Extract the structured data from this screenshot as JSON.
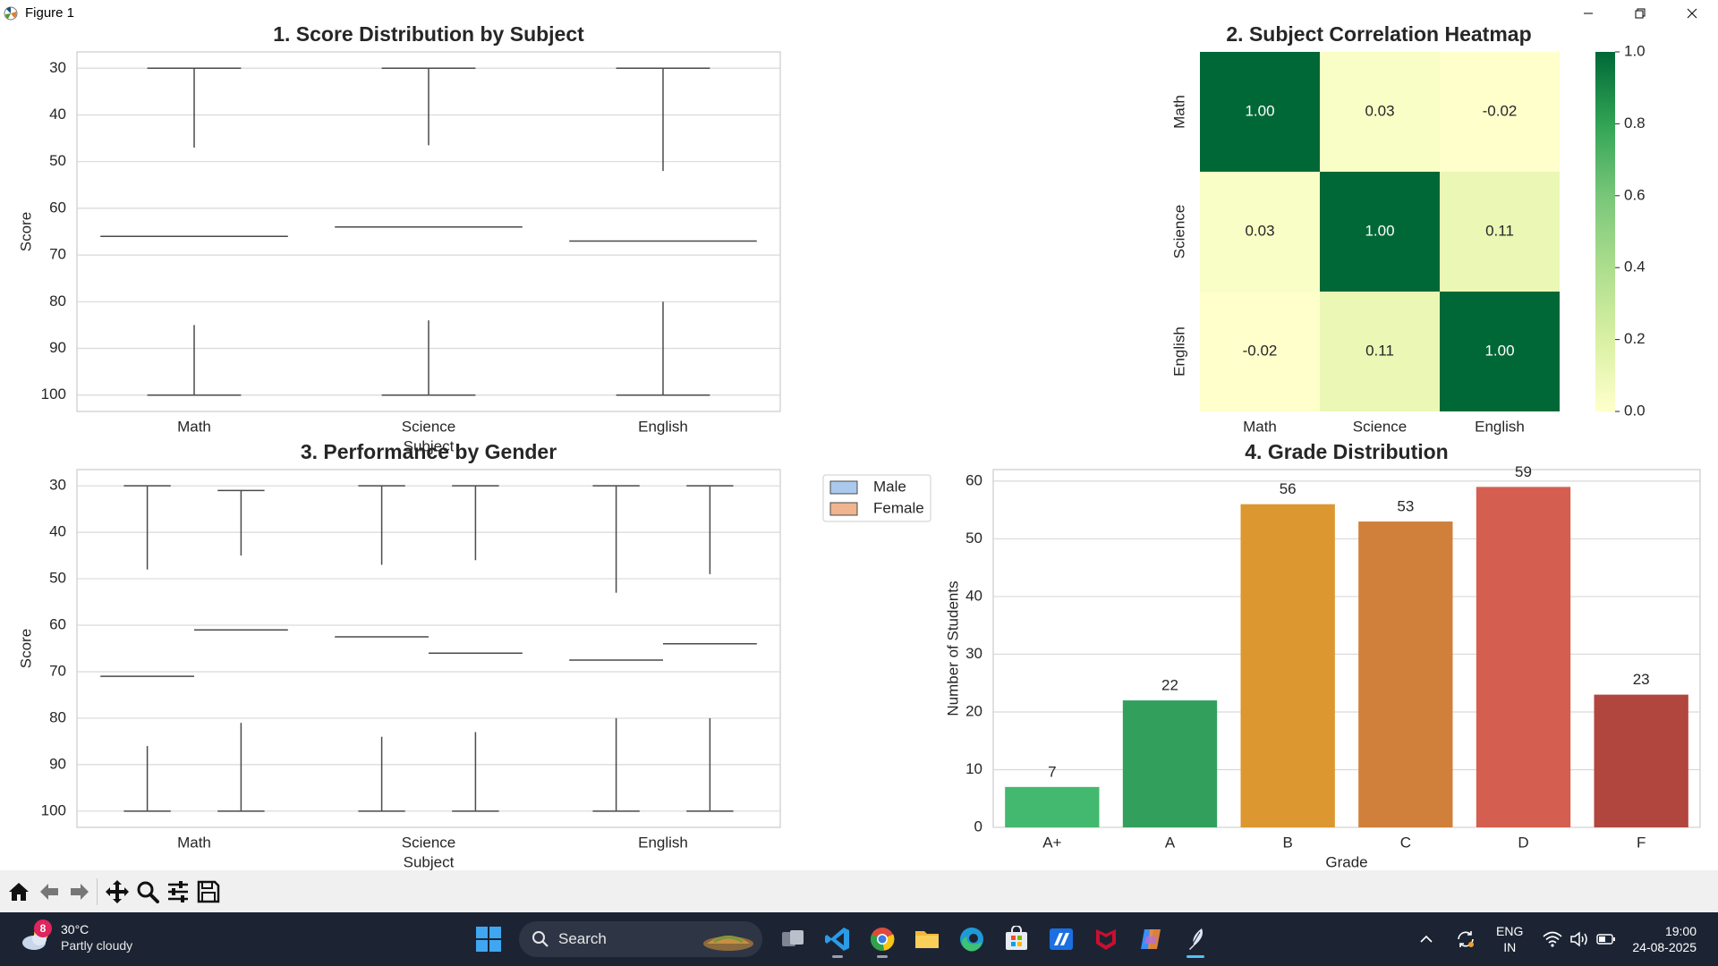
{
  "window": {
    "title": "Figure 1"
  },
  "toolbar": {
    "buttons": [
      "home-icon",
      "back-arrow-icon",
      "forward-arrow-icon",
      "pan-icon",
      "zoom-icon",
      "configure-subplots-icon",
      "save-icon"
    ]
  },
  "taskbar": {
    "weather": {
      "badge": "8",
      "temp": "30°C",
      "desc": "Partly cloudy"
    },
    "search_label": "Search",
    "lang_line1": "ENG",
    "lang_line2": "IN",
    "time": "19:00",
    "date": "24-08-2025"
  },
  "colors": {
    "math": "#ef7b7b",
    "science": "#5dc1b9",
    "english": "#52aec2",
    "male": "#abc9ec",
    "female": "#f0b48e",
    "grades": [
      "#43b96f",
      "#32a05c",
      "#dc9730",
      "#d0803a",
      "#d45f50",
      "#b1463e"
    ]
  },
  "chart_data": [
    {
      "type": "box",
      "title": "1. Score Distribution by Subject",
      "xlabel": "Subject",
      "ylabel": "Score",
      "ylim": [
        26.5,
        103.5
      ],
      "yticks": [
        30,
        40,
        50,
        60,
        70,
        80,
        90,
        100
      ],
      "categories": [
        "Math",
        "Science",
        "English"
      ],
      "boxes": [
        {
          "whislo": 30,
          "q1": 47,
          "med": 66,
          "q3": 85,
          "whishi": 100
        },
        {
          "whislo": 30,
          "q1": 46.5,
          "med": 64,
          "q3": 84,
          "whishi": 100
        },
        {
          "whislo": 30,
          "q1": 52,
          "med": 67,
          "q3": 80,
          "whishi": 100
        }
      ]
    },
    {
      "type": "heatmap",
      "title": "2. Subject Correlation Heatmap",
      "rows": [
        "Math",
        "Science",
        "English"
      ],
      "cols": [
        "Math",
        "Science",
        "English"
      ],
      "values": [
        [
          1.0,
          0.03,
          -0.02
        ],
        [
          0.03,
          1.0,
          0.11
        ],
        [
          -0.02,
          0.11,
          1.0
        ]
      ],
      "labels": [
        [
          "1.00",
          "0.03",
          "-0.02"
        ],
        [
          "0.03",
          "1.00",
          "0.11"
        ],
        [
          "-0.02",
          "0.11",
          "1.00"
        ]
      ],
      "colorbar_ticks": [
        "1.0",
        "0.8",
        "0.6",
        "0.4",
        "0.2",
        "0.0"
      ],
      "colormap": "YlGn"
    },
    {
      "type": "box",
      "title": "3. Performance by Gender",
      "xlabel": "Subject",
      "ylabel": "Score",
      "ylim": [
        26.5,
        103.5
      ],
      "yticks": [
        30,
        40,
        50,
        60,
        70,
        80,
        90,
        100
      ],
      "categories": [
        "Math",
        "Science",
        "English"
      ],
      "legend": [
        "Male",
        "Female"
      ],
      "legend_placement": "outside upper right",
      "series": [
        {
          "name": "Male",
          "boxes": [
            {
              "whislo": 30,
              "q1": 48,
              "med": 71,
              "q3": 86,
              "whishi": 100
            },
            {
              "whislo": 30,
              "q1": 47,
              "med": 62.5,
              "q3": 84,
              "whishi": 100
            },
            {
              "whislo": 30,
              "q1": 53,
              "med": 67.5,
              "q3": 80,
              "whishi": 100
            }
          ]
        },
        {
          "name": "Female",
          "boxes": [
            {
              "whislo": 31,
              "q1": 45,
              "med": 61,
              "q3": 81,
              "whishi": 100
            },
            {
              "whislo": 30,
              "q1": 46,
              "med": 66,
              "q3": 83,
              "whishi": 100
            },
            {
              "whislo": 30,
              "q1": 49,
              "med": 64,
              "q3": 80,
              "whishi": 100
            }
          ]
        }
      ]
    },
    {
      "type": "bar",
      "title": "4. Grade Distribution",
      "xlabel": "Grade",
      "ylabel": "Number of Students",
      "ylim": [
        0,
        62
      ],
      "yticks": [
        0,
        10,
        20,
        30,
        40,
        50,
        60
      ],
      "categories": [
        "A+",
        "A",
        "B",
        "C",
        "D",
        "F"
      ],
      "values": [
        7,
        22,
        56,
        53,
        59,
        23
      ]
    }
  ]
}
